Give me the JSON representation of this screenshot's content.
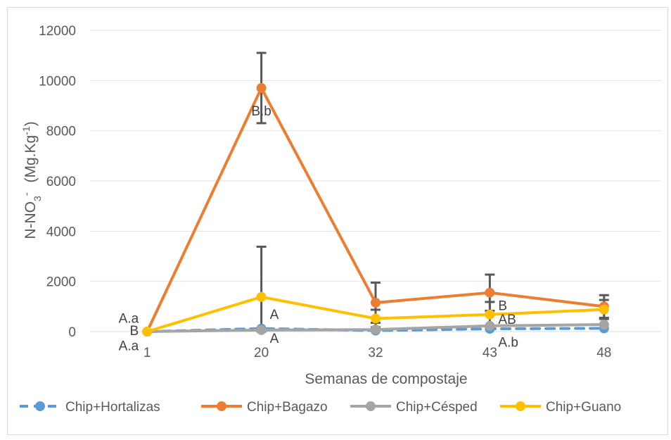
{
  "chart_data": {
    "type": "line",
    "xlabel": "Semanas de compostaje",
    "ylabel": {
      "base": "N-NO",
      "sub": "3",
      "sup": "-",
      "unit_pre": "(Mg.Kg",
      "unit_sup": "-1",
      "unit_post": ")"
    },
    "categories": [
      "1",
      "20",
      "32",
      "43",
      "48"
    ],
    "ylim": [
      0,
      12000
    ],
    "yticks": [
      0,
      2000,
      4000,
      6000,
      8000,
      10000,
      12000
    ],
    "grid": true,
    "legend_position": "bottom",
    "series": [
      {
        "name": "Chip+Hortalizas",
        "color": "#5b9bd5",
        "dashed": true,
        "values": [
          0,
          120,
          40,
          110,
          130
        ],
        "errors": [
          null,
          null,
          null,
          null,
          null
        ]
      },
      {
        "name": "Chip+Bagazo",
        "color": "#ed7d31",
        "dashed": false,
        "values": [
          0,
          9700,
          1150,
          1550,
          1000
        ],
        "errors": [
          null,
          1400,
          800,
          720,
          450
        ]
      },
      {
        "name": "Chip+Césped",
        "color": "#a5a5a5",
        "dashed": false,
        "values": [
          0,
          60,
          80,
          230,
          280
        ],
        "errors": [
          null,
          null,
          null,
          null,
          null
        ]
      },
      {
        "name": "Chip+Guano",
        "color": "#ffc000",
        "dashed": false,
        "values": [
          0,
          1380,
          520,
          680,
          880
        ],
        "errors": [
          null,
          2000,
          350,
          500,
          380
        ]
      }
    ],
    "annotations": [
      {
        "text": "A.a",
        "cat": 0,
        "value": 550,
        "anchor": "end"
      },
      {
        "text": "B",
        "cat": 0,
        "value": 50,
        "anchor": "end"
      },
      {
        "text": "A.a",
        "cat": 0,
        "value": -550,
        "anchor": "end"
      },
      {
        "text": "B.b",
        "cat": 1,
        "value": 8800,
        "anchor": "middle"
      },
      {
        "text": "A",
        "cat": 1,
        "value": 700,
        "anchor": "start"
      },
      {
        "text": "A",
        "cat": 1,
        "value": -250,
        "anchor": "start"
      },
      {
        "text": "B",
        "cat": 3,
        "value": 1050,
        "anchor": "start"
      },
      {
        "text": "AB",
        "cat": 3,
        "value": 500,
        "anchor": "start"
      },
      {
        "text": "A.b",
        "cat": 3,
        "value": -400,
        "anchor": "start"
      }
    ]
  }
}
